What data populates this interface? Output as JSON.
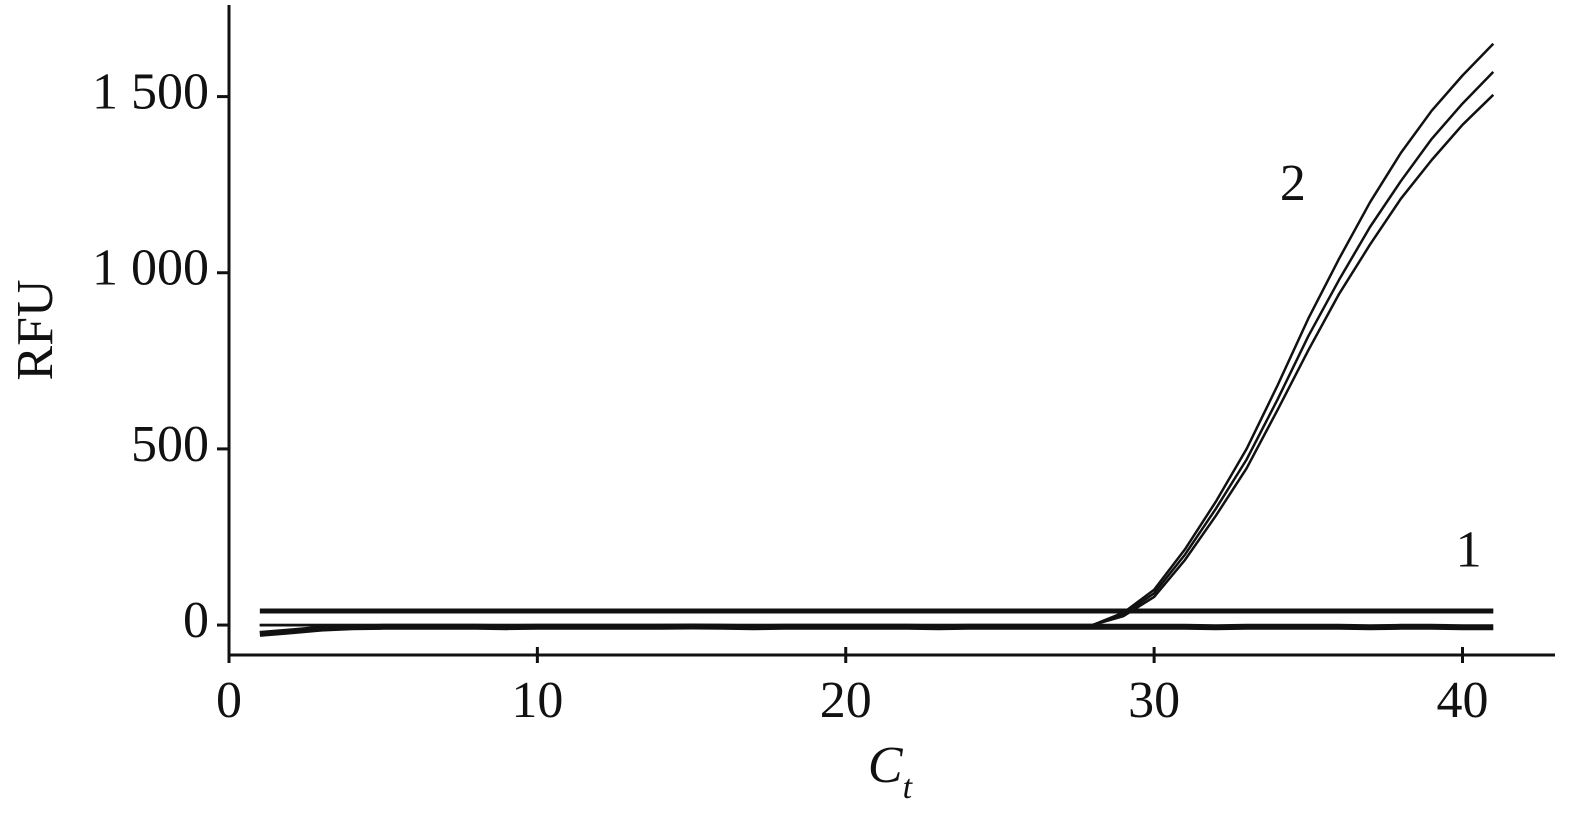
{
  "chart_data": {
    "type": "line",
    "xlabel": {
      "main": "C",
      "sub": "t"
    },
    "ylabel": "RFU",
    "xlim": [
      0,
      43
    ],
    "ylim": [
      -85,
      1760
    ],
    "xticks": [
      0,
      10,
      20,
      30,
      40
    ],
    "yticks": [
      0,
      500,
      {
        "value": 1000,
        "label": "1 000"
      },
      {
        "value": 1500,
        "label": "1 500"
      }
    ],
    "x": [
      1,
      2,
      3,
      4,
      5,
      6,
      7,
      8,
      9,
      10,
      11,
      12,
      13,
      14,
      15,
      16,
      17,
      18,
      19,
      20,
      21,
      22,
      23,
      24,
      25,
      26,
      27,
      28,
      29,
      30,
      31,
      32,
      33,
      34,
      35,
      36,
      37,
      38,
      39,
      40,
      41
    ],
    "threshold": 40,
    "series": [
      {
        "color": "#111111",
        "values": [
          -25,
          -18,
          -10,
          -6,
          -5,
          -5,
          -5,
          -5,
          -6,
          -5,
          -5,
          -5,
          -5,
          -5,
          -4,
          -5,
          -6,
          -5,
          -5,
          -5,
          -5,
          -5,
          -6,
          -5,
          -5,
          -5,
          -5,
          -5,
          -5,
          -5,
          -5,
          -6,
          -5,
          -5,
          -5,
          -5,
          -6,
          -5,
          -5,
          -6,
          -6
        ]
      },
      {
        "color": "#111111",
        "values": [
          0,
          0,
          0,
          0,
          0,
          0,
          0,
          0,
          0,
          0,
          0,
          0,
          0,
          0,
          0,
          0,
          0,
          0,
          0,
          0,
          0,
          0,
          0,
          0,
          0,
          0,
          0,
          0,
          35,
          100,
          215,
          350,
          500,
          680,
          870,
          1040,
          1200,
          1340,
          1460,
          1560,
          1650
        ]
      },
      {
        "color": "#111111",
        "values": [
          0,
          0,
          0,
          0,
          0,
          0,
          0,
          0,
          0,
          0,
          0,
          0,
          0,
          0,
          0,
          0,
          0,
          0,
          0,
          0,
          0,
          0,
          0,
          0,
          0,
          0,
          0,
          0,
          30,
          90,
          200,
          330,
          470,
          640,
          820,
          980,
          1130,
          1260,
          1380,
          1480,
          1570
        ]
      },
      {
        "color": "#111111",
        "values": [
          0,
          0,
          0,
          0,
          0,
          0,
          0,
          0,
          0,
          0,
          0,
          0,
          0,
          0,
          0,
          0,
          0,
          0,
          0,
          0,
          0,
          0,
          0,
          0,
          0,
          0,
          0,
          0,
          25,
          80,
          185,
          310,
          445,
          610,
          780,
          940,
          1080,
          1210,
          1320,
          1420,
          1505
        ]
      }
    ],
    "annotations": [
      {
        "text": "2",
        "x": 34.5,
        "y": 1240
      },
      {
        "text": "1",
        "x": 40.2,
        "y": 200
      }
    ]
  }
}
